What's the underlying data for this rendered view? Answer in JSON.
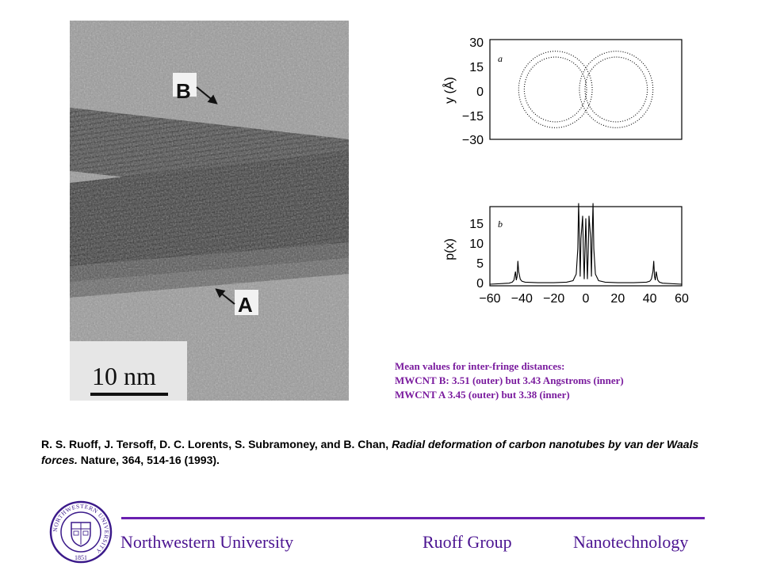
{
  "micrograph": {
    "label_b": "B",
    "label_a": "A",
    "scale_bar": "10 nm"
  },
  "plot_a": {
    "panel_letter": "a",
    "ylabel": "y (Å)",
    "y_ticks": [
      "30",
      "15",
      "0",
      "−15",
      "−30"
    ]
  },
  "plot_b": {
    "panel_letter": "b",
    "ylabel": "p(x)",
    "y_ticks": [
      "15",
      "10",
      "5",
      "0"
    ],
    "x_ticks": [
      "−60",
      "−40",
      "−20",
      "0",
      "20",
      "40",
      "60"
    ]
  },
  "chart_data": [
    {
      "type": "line",
      "title": "",
      "xlabel": "",
      "ylabel": "y (Å)",
      "xlim": [
        -60,
        60
      ],
      "ylim": [
        -30,
        30
      ],
      "description_series": [
        {
          "name": "",
          "center_x": -19,
          "center_y": 0,
          "outer_radius": 23,
          "inner_radius": 19.5
        },
        {
          "name": "",
          "center_x": 19,
          "center_y": 0,
          "outer_radius": 23,
          "inner_radius": 19.5
        }
      ]
    },
    {
      "type": "line",
      "title": "",
      "xlabel": "",
      "ylabel": "p(x)",
      "xlim": [
        -60,
        60
      ],
      "ylim": [
        0,
        15
      ],
      "x": [
        -60,
        -48,
        -46,
        -45,
        -44,
        -43.5,
        -43,
        -42.5,
        -42,
        -41,
        -40,
        -38,
        -30,
        -20,
        -12,
        -8,
        -6,
        -5,
        -4.5,
        -4,
        -3.5,
        -3,
        -2,
        -1.5,
        -1,
        0,
        1,
        1.5,
        2,
        3,
        3.5,
        4,
        4.5,
        5,
        6,
        8,
        12,
        20,
        30,
        38,
        40,
        41,
        42,
        42.5,
        43,
        43.5,
        44,
        45,
        46,
        48,
        60
      ],
      "y": [
        0,
        0.2,
        0.4,
        0.8,
        2.5,
        0.8,
        1.5,
        4.6,
        2.5,
        1.0,
        0.6,
        0.4,
        0.3,
        0.3,
        0.4,
        0.7,
        2,
        7,
        16,
        10,
        1.5,
        9,
        13.5,
        6,
        1,
        13,
        1,
        6,
        13.5,
        9,
        1.5,
        10,
        16,
        7,
        2,
        0.7,
        0.4,
        0.3,
        0.3,
        0.4,
        0.6,
        1.0,
        2.5,
        4.6,
        1.5,
        0.8,
        2.5,
        0.8,
        0.4,
        0.2,
        0
      ]
    }
  ],
  "note": {
    "line1": "Mean values for inter-fringe distances:",
    "line2": "MWCNT B: 3.51 (outer) but  3.43 Angstroms (inner)",
    "line3": "MWCNT A 3.45 (outer) but 3.38 (inner)"
  },
  "citation": {
    "authors": "R. S. Ruoff, J. Tersoff, D. C. Lorents, S. Subramoney, and B. Chan, ",
    "title": "Radial deformation of carbon nanotubes by van der Waals forces.",
    "source": " Nature, 364, 514-16 (1993)."
  },
  "seal": {
    "ring_text": "NORTHWESTERN UNIVERSITY",
    "year": "1851"
  },
  "footer": {
    "university": "Northwestern University",
    "group": "Ruoff Group",
    "topic": "Nanotechnology",
    "accent_color": "#6a1fb0",
    "text_color": "#4b1491"
  }
}
